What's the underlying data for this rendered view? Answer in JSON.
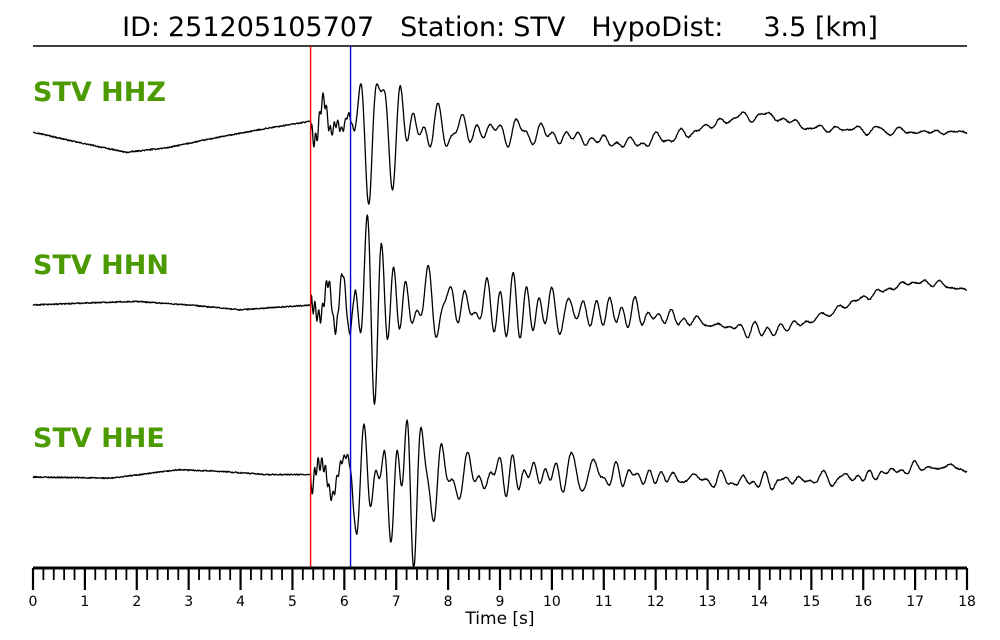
{
  "header": {
    "id_label": "ID:",
    "id_value": "251205105707",
    "station_label": "Station:",
    "station_value": "STV",
    "hypodist_label": "HypoDist:",
    "hypodist_value": "3.5 [km]"
  },
  "colors": {
    "label_green": "#4a9a00",
    "p_pick": "#ff0000",
    "s_pick": "#0000cc",
    "trace": "#000000"
  },
  "chart_data": {
    "type": "line",
    "xlabel": "Time [s]",
    "xlim": [
      0,
      18
    ],
    "x_ticks": [
      "0",
      "1",
      "2",
      "3",
      "4",
      "5",
      "6",
      "7",
      "8",
      "9",
      "10",
      "11",
      "12",
      "13",
      "14",
      "15",
      "16",
      "17",
      "18"
    ],
    "picks": [
      {
        "phase": "P",
        "time": 5.35
      },
      {
        "phase": "S",
        "time": 6.12
      }
    ],
    "series": [
      {
        "name": "STV HHZ",
        "lf": [
          [
            0,
            0
          ],
          [
            0.8,
            -0.08
          ],
          [
            1.8,
            -0.17
          ],
          [
            2.6,
            -0.13
          ],
          [
            3.5,
            -0.05
          ],
          [
            4.5,
            0.03
          ],
          [
            5.35,
            0.09
          ],
          [
            6,
            0.08
          ],
          [
            8,
            0.02
          ],
          [
            9.5,
            0.0
          ],
          [
            10.5,
            -0.05
          ],
          [
            11.5,
            -0.1
          ],
          [
            12.5,
            -0.03
          ],
          [
            13.5,
            0.12
          ],
          [
            14.2,
            0.14
          ],
          [
            15,
            0.03
          ],
          [
            16,
            0.02
          ],
          [
            17,
            0
          ],
          [
            18,
            0
          ]
        ],
        "env": [
          [
            0,
            0
          ],
          [
            5.3,
            0
          ],
          [
            5.35,
            0.14
          ],
          [
            5.9,
            0.17
          ],
          [
            6.1,
            0.2
          ],
          [
            6.5,
            0.62
          ],
          [
            6.8,
            0.55
          ],
          [
            7.2,
            0.38
          ],
          [
            7.8,
            0.18
          ],
          [
            8.5,
            0.13
          ],
          [
            10,
            0.1
          ],
          [
            11,
            0.07
          ],
          [
            12,
            0.06
          ],
          [
            13,
            0.04
          ],
          [
            15,
            0.03
          ],
          [
            18,
            0.02
          ]
        ]
      },
      {
        "name": "STV HHN",
        "lf": [
          [
            0,
            0
          ],
          [
            1.2,
            0.02
          ],
          [
            2,
            0.03
          ],
          [
            3,
            0.0
          ],
          [
            4,
            -0.04
          ],
          [
            5.35,
            0.0
          ],
          [
            6,
            0.02
          ],
          [
            8,
            0.0
          ],
          [
            10,
            -0.05
          ],
          [
            11.5,
            -0.07
          ],
          [
            12.5,
            -0.12
          ],
          [
            13.5,
            -0.19
          ],
          [
            14.2,
            -0.22
          ],
          [
            15,
            -0.13
          ],
          [
            16,
            0.06
          ],
          [
            16.8,
            0.18
          ],
          [
            17.3,
            0.19
          ],
          [
            18,
            0.12
          ]
        ],
        "env": [
          [
            0,
            0
          ],
          [
            5.3,
            0
          ],
          [
            5.35,
            0.14
          ],
          [
            6.0,
            0.22
          ],
          [
            6.5,
            0.55
          ],
          [
            7.0,
            0.62
          ],
          [
            7.5,
            0.42
          ],
          [
            8.5,
            0.26
          ],
          [
            10,
            0.2
          ],
          [
            11,
            0.14
          ],
          [
            12,
            0.1
          ],
          [
            13,
            0.06
          ],
          [
            15,
            0.03
          ],
          [
            18,
            0.02
          ]
        ]
      },
      {
        "name": "STV HHE",
        "lf": [
          [
            0,
            0
          ],
          [
            1.5,
            -0.01
          ],
          [
            2.8,
            0.06
          ],
          [
            3.5,
            0.05
          ],
          [
            4.5,
            0.02
          ],
          [
            5.35,
            0.02
          ],
          [
            6,
            0.0
          ],
          [
            7,
            -0.04
          ],
          [
            9,
            0.02
          ],
          [
            10.5,
            0.03
          ],
          [
            12,
            0.0
          ],
          [
            13,
            -0.02
          ],
          [
            14,
            -0.04
          ],
          [
            15,
            -0.02
          ],
          [
            16,
            0.0
          ],
          [
            17,
            0.08
          ],
          [
            18,
            0.08
          ]
        ],
        "env": [
          [
            0,
            0
          ],
          [
            5.3,
            0
          ],
          [
            5.35,
            0.16
          ],
          [
            6.0,
            0.22
          ],
          [
            6.5,
            0.45
          ],
          [
            7.3,
            0.55
          ],
          [
            7.6,
            0.45
          ],
          [
            8,
            0.22
          ],
          [
            9,
            0.18
          ],
          [
            10,
            0.15
          ],
          [
            11,
            0.1
          ],
          [
            12,
            0.08
          ],
          [
            13,
            0.06
          ],
          [
            15,
            0.05
          ],
          [
            18,
            0.04
          ]
        ]
      }
    ]
  }
}
